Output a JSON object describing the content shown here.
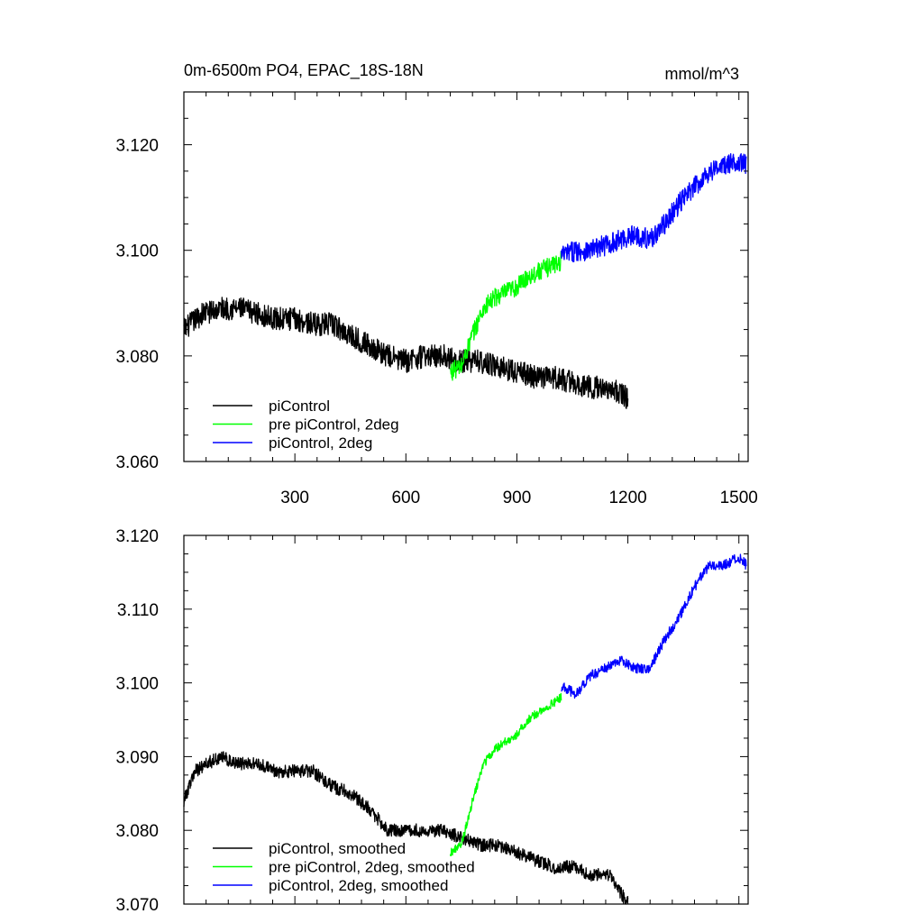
{
  "chart_data": [
    {
      "type": "line",
      "title_left": "0m-6500m PO4, EPAC_18S-18N",
      "title_right": "mmol/m^3",
      "xlim": [
        0,
        1525
      ],
      "ylim": [
        3.06,
        3.13
      ],
      "xticks": [
        300,
        600,
        900,
        1200,
        1500
      ],
      "x_tick_labels": [
        "300",
        "600",
        "900",
        "1200",
        "1500"
      ],
      "yticks": [
        3.06,
        3.08,
        3.1,
        3.12
      ],
      "y_tick_labels": [
        "3.060",
        "3.080",
        "3.100",
        "3.120"
      ],
      "legend_position": "bottom-left",
      "grid": false,
      "series": [
        {
          "name": "piControl",
          "color": "#000000",
          "x": [
            0,
            50,
            100,
            150,
            200,
            250,
            300,
            350,
            400,
            450,
            500,
            550,
            600,
            650,
            700,
            750,
            800,
            850,
            900,
            950,
            1000,
            1050,
            1100,
            1150,
            1200
          ],
          "y": [
            3.085,
            3.088,
            3.089,
            3.089,
            3.088,
            3.087,
            3.087,
            3.086,
            3.086,
            3.084,
            3.082,
            3.08,
            3.079,
            3.08,
            3.08,
            3.079,
            3.079,
            3.078,
            3.077,
            3.076,
            3.076,
            3.075,
            3.074,
            3.074,
            3.072
          ],
          "noise": 0.0022
        },
        {
          "name": "pre piControl, 2deg",
          "color": "#00ff00",
          "x": [
            720,
            750,
            780,
            810,
            840,
            870,
            900,
            930,
            960,
            990,
            1020
          ],
          "y": [
            3.077,
            3.078,
            3.084,
            3.089,
            3.091,
            3.092,
            3.093,
            3.095,
            3.096,
            3.097,
            3.098
          ],
          "noise": 0.0018
        },
        {
          "name": "piControl, 2deg",
          "color": "#0000ff",
          "x": [
            1020,
            1060,
            1100,
            1140,
            1180,
            1220,
            1260,
            1300,
            1340,
            1380,
            1420,
            1460,
            1500,
            1520
          ],
          "y": [
            3.099,
            3.1,
            3.1,
            3.101,
            3.102,
            3.103,
            3.102,
            3.105,
            3.109,
            3.112,
            3.115,
            3.116,
            3.117,
            3.116
          ],
          "noise": 0.002
        }
      ]
    },
    {
      "type": "line",
      "xlim": [
        0,
        1525
      ],
      "ylim": [
        3.07,
        3.12
      ],
      "xticks": [
        300,
        600,
        900,
        1200,
        1500
      ],
      "yticks": [
        3.07,
        3.08,
        3.09,
        3.1,
        3.11,
        3.12
      ],
      "y_tick_labels": [
        "3.070",
        "3.080",
        "3.090",
        "3.100",
        "3.110",
        "3.120"
      ],
      "legend_position": "bottom-left",
      "grid": false,
      "series": [
        {
          "name": "piControl, smoothed",
          "color": "#000000",
          "x": [
            0,
            30,
            60,
            100,
            150,
            200,
            250,
            300,
            350,
            400,
            450,
            500,
            550,
            600,
            650,
            700,
            750,
            800,
            850,
            900,
            950,
            1000,
            1050,
            1100,
            1150,
            1200
          ],
          "y": [
            3.084,
            3.088,
            3.089,
            3.09,
            3.089,
            3.089,
            3.088,
            3.088,
            3.088,
            3.086,
            3.085,
            3.083,
            3.08,
            3.08,
            3.08,
            3.08,
            3.079,
            3.078,
            3.078,
            3.077,
            3.076,
            3.075,
            3.075,
            3.074,
            3.074,
            3.07
          ],
          "noise": 0.0009
        },
        {
          "name": "pre piControl, 2deg, smoothed",
          "color": "#00ff00",
          "x": [
            720,
            750,
            780,
            810,
            840,
            870,
            900,
            930,
            960,
            990,
            1020
          ],
          "y": [
            3.077,
            3.078,
            3.084,
            3.089,
            3.091,
            3.092,
            3.093,
            3.095,
            3.096,
            3.097,
            3.098
          ],
          "noise": 0.0006
        },
        {
          "name": "piControl, 2deg, smoothed",
          "color": "#0000ff",
          "x": [
            1020,
            1060,
            1100,
            1140,
            1180,
            1220,
            1260,
            1300,
            1340,
            1380,
            1420,
            1460,
            1500,
            1520
          ],
          "y": [
            3.0995,
            3.0985,
            3.101,
            3.102,
            3.103,
            3.102,
            3.102,
            3.106,
            3.109,
            3.113,
            3.116,
            3.116,
            3.117,
            3.116
          ],
          "noise": 0.0007
        }
      ]
    }
  ]
}
